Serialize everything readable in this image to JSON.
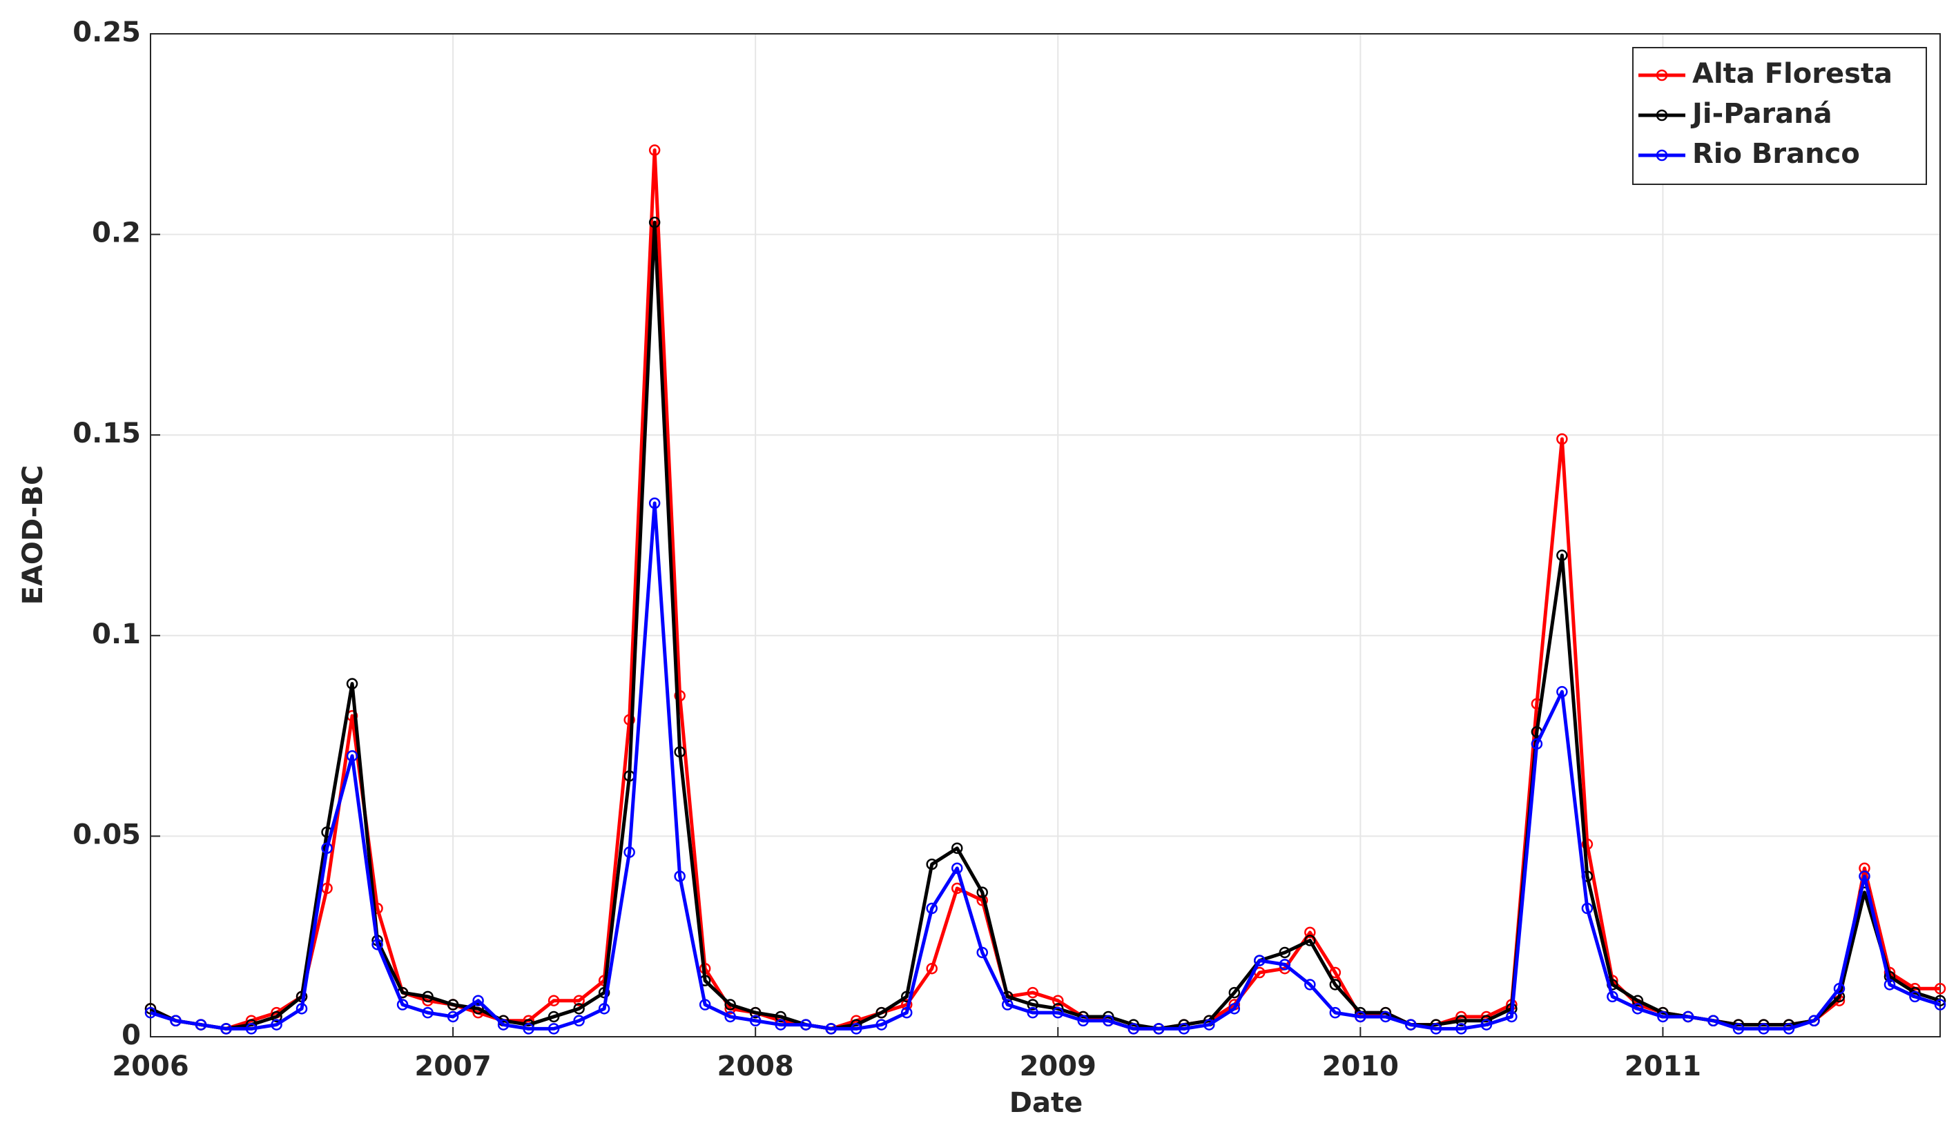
{
  "chart_data": {
    "type": "line",
    "x_label": "Date",
    "y_label": "EAOD-BC",
    "categories": [
      "2006",
      null,
      null,
      null,
      null,
      null,
      null,
      null,
      null,
      null,
      null,
      null,
      "2007",
      null,
      null,
      null,
      null,
      null,
      null,
      null,
      null,
      null,
      null,
      null,
      "2008",
      null,
      null,
      null,
      null,
      null,
      null,
      null,
      null,
      null,
      null,
      null,
      "2009",
      null,
      null,
      null,
      null,
      null,
      null,
      null,
      null,
      null,
      null,
      null,
      "2010",
      null,
      null,
      null,
      null,
      null,
      null,
      null,
      null,
      null,
      null,
      null,
      "2011",
      null,
      null,
      null,
      null,
      null,
      null,
      null,
      null,
      null,
      null,
      null
    ],
    "series": [
      {
        "name": "Alta Floresta",
        "color": "#ff0000",
        "values": [
          0.007,
          0.004,
          0.003,
          0.002,
          0.004,
          0.006,
          0.01,
          0.037,
          0.08,
          0.032,
          0.011,
          0.009,
          0.008,
          0.006,
          0.004,
          0.004,
          0.009,
          0.009,
          0.014,
          0.079,
          0.221,
          0.085,
          0.017,
          0.007,
          0.006,
          0.004,
          0.003,
          0.002,
          0.004,
          0.006,
          0.008,
          0.017,
          0.037,
          0.034,
          0.01,
          0.011,
          0.009,
          0.005,
          0.004,
          0.002,
          0.002,
          0.003,
          0.004,
          0.008,
          0.016,
          0.017,
          0.026,
          0.016,
          0.005,
          0.006,
          0.003,
          0.003,
          0.005,
          0.005,
          0.008,
          0.083,
          0.149,
          0.048,
          0.014,
          0.008,
          0.006,
          0.005,
          0.004,
          0.003,
          0.003,
          0.003,
          0.004,
          0.009,
          0.042,
          0.016,
          0.012,
          0.012
        ]
      },
      {
        "name": "Ji-Paraná",
        "color": "#000000",
        "values": [
          0.007,
          0.004,
          0.003,
          0.002,
          0.003,
          0.005,
          0.01,
          0.051,
          0.088,
          0.024,
          0.011,
          0.01,
          0.008,
          0.007,
          0.004,
          0.003,
          0.005,
          0.007,
          0.011,
          0.065,
          0.203,
          0.071,
          0.014,
          0.008,
          0.006,
          0.005,
          0.003,
          0.002,
          0.003,
          0.006,
          0.01,
          0.043,
          0.047,
          0.036,
          0.01,
          0.008,
          0.007,
          0.005,
          0.005,
          0.003,
          0.002,
          0.003,
          0.004,
          0.011,
          0.019,
          0.021,
          0.024,
          0.013,
          0.006,
          0.006,
          0.003,
          0.003,
          0.004,
          0.004,
          0.007,
          0.076,
          0.12,
          0.04,
          0.013,
          0.009,
          0.006,
          0.005,
          0.004,
          0.003,
          0.003,
          0.003,
          0.004,
          0.01,
          0.036,
          0.015,
          0.011,
          0.009
        ]
      },
      {
        "name": "Rio Branco",
        "color": "#0000ff",
        "values": [
          0.006,
          0.004,
          0.003,
          0.002,
          0.002,
          0.003,
          0.007,
          0.047,
          0.07,
          0.023,
          0.008,
          0.006,
          0.005,
          0.009,
          0.003,
          0.002,
          0.002,
          0.004,
          0.007,
          0.046,
          0.133,
          0.04,
          0.008,
          0.005,
          0.004,
          0.003,
          0.003,
          0.002,
          0.002,
          0.003,
          0.006,
          0.032,
          0.042,
          0.021,
          0.008,
          0.006,
          0.006,
          0.004,
          0.004,
          0.002,
          0.002,
          0.002,
          0.003,
          0.007,
          0.019,
          0.018,
          0.013,
          0.006,
          0.005,
          0.005,
          0.003,
          0.002,
          0.002,
          0.003,
          0.005,
          0.073,
          0.086,
          0.032,
          0.01,
          0.007,
          0.005,
          0.005,
          0.004,
          0.002,
          0.002,
          0.002,
          0.004,
          0.012,
          0.04,
          0.013,
          0.01,
          0.008
        ]
      }
    ],
    "ylim": [
      0,
      0.25
    ],
    "yticks": [
      0,
      0.05,
      0.1,
      0.15,
      0.2,
      0.25
    ],
    "grid": true,
    "legend": "upper right"
  }
}
